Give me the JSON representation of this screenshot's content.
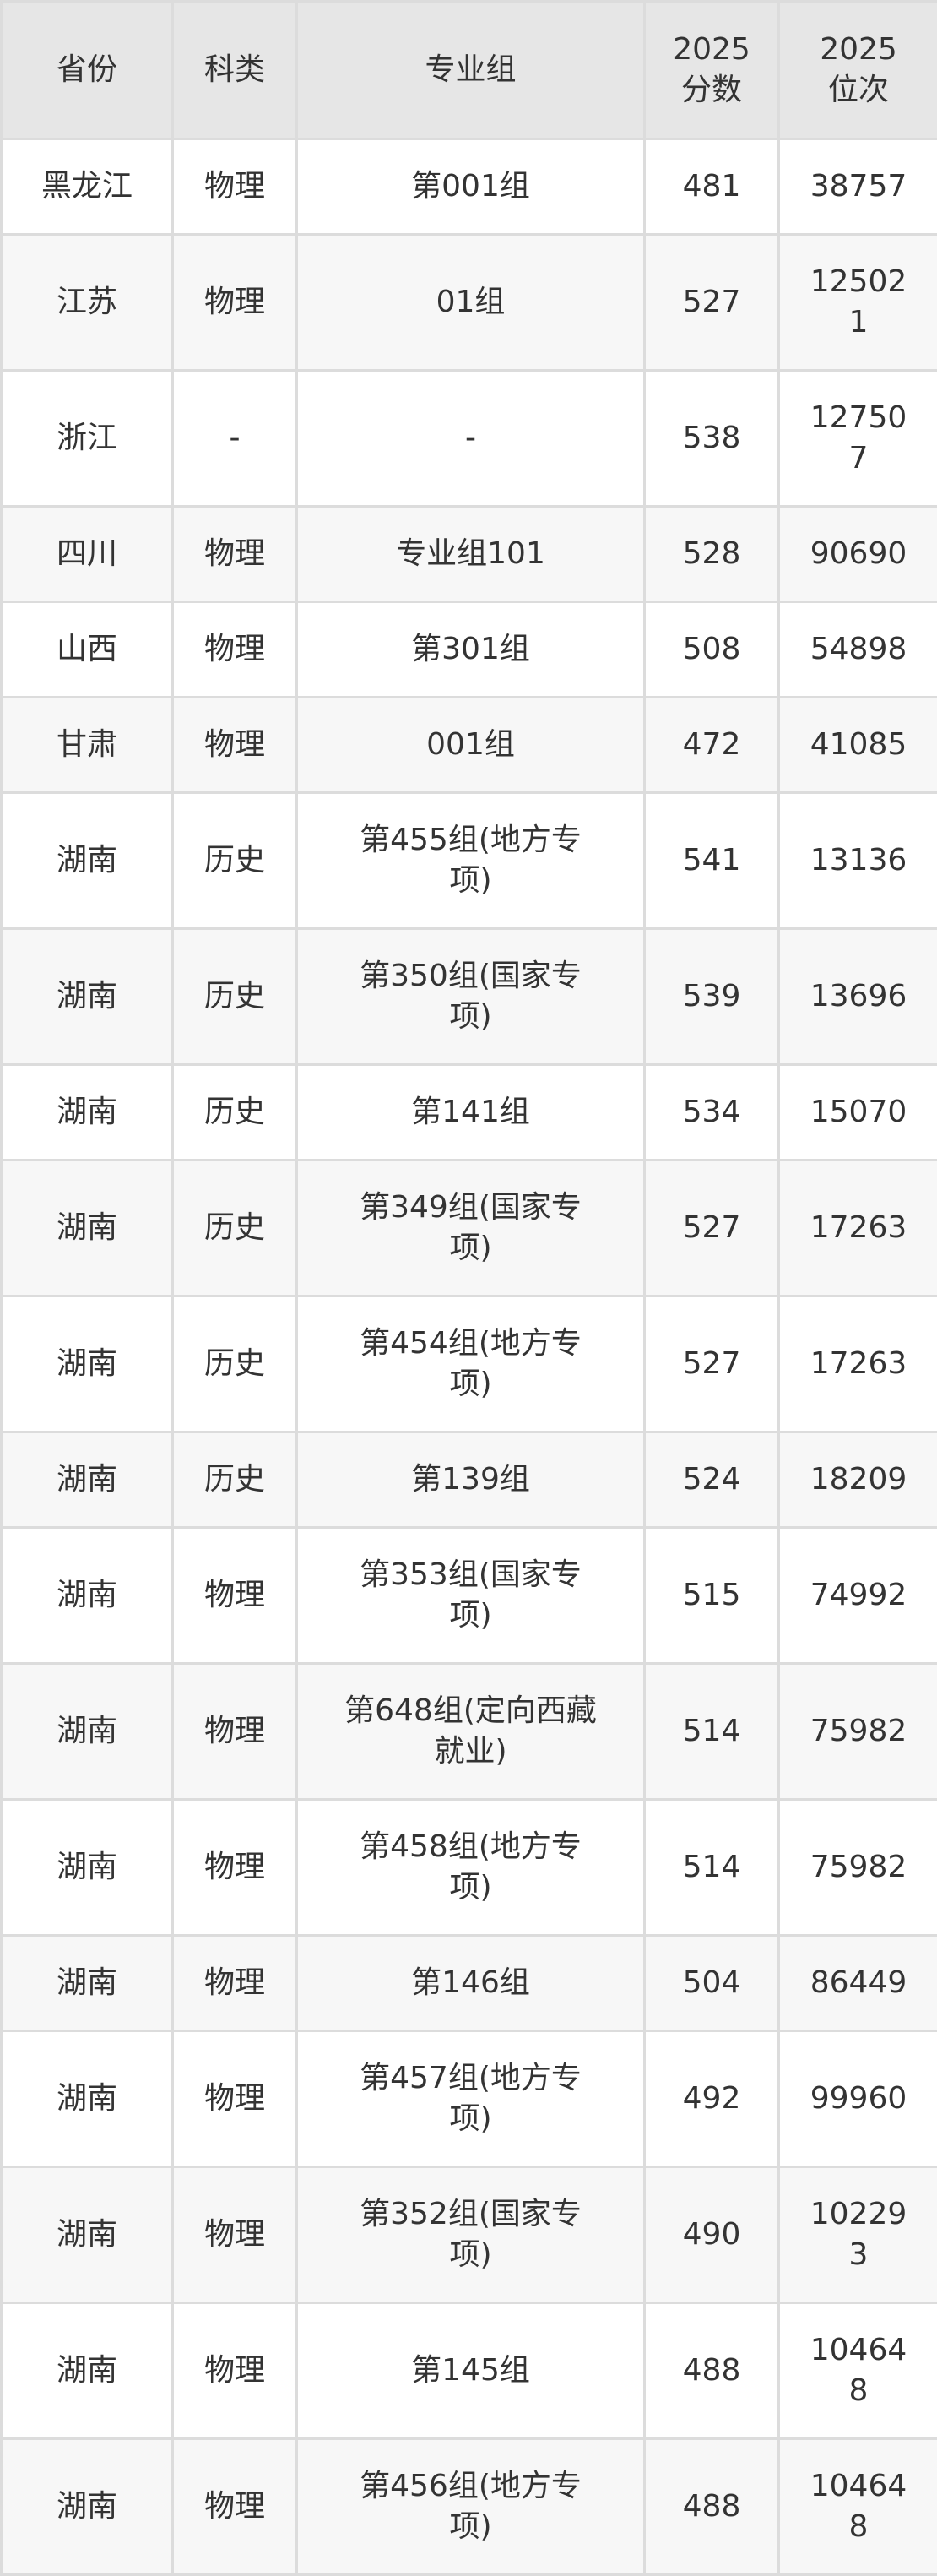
{
  "headers": [
    "省份",
    "科类",
    "专业组",
    "2025分数",
    "2025位次"
  ],
  "rows": [
    [
      "黑龙江",
      "物理",
      "第001组",
      "481",
      "38757"
    ],
    [
      "江苏",
      "物理",
      "01组",
      "527",
      "125021"
    ],
    [
      "浙江",
      "-",
      "-",
      "538",
      "127507"
    ],
    [
      "四川",
      "物理",
      "专业组101",
      "528",
      "90690"
    ],
    [
      "山西",
      "物理",
      "第301组",
      "508",
      "54898"
    ],
    [
      "甘肃",
      "物理",
      "001组",
      "472",
      "41085"
    ],
    [
      "湖南",
      "历史",
      "第455组(地方专项)",
      "541",
      "13136"
    ],
    [
      "湖南",
      "历史",
      "第350组(国家专项)",
      "539",
      "13696"
    ],
    [
      "湖南",
      "历史",
      "第141组",
      "534",
      "15070"
    ],
    [
      "湖南",
      "历史",
      "第349组(国家专项)",
      "527",
      "17263"
    ],
    [
      "湖南",
      "历史",
      "第454组(地方专项)",
      "527",
      "17263"
    ],
    [
      "湖南",
      "历史",
      "第139组",
      "524",
      "18209"
    ],
    [
      "湖南",
      "物理",
      "第353组(国家专项)",
      "515",
      "74992"
    ],
    [
      "湖南",
      "物理",
      "第648组(定向西藏就业)",
      "514",
      "75982"
    ],
    [
      "湖南",
      "物理",
      "第458组(地方专项)",
      "514",
      "75982"
    ],
    [
      "湖南",
      "物理",
      "第146组",
      "504",
      "86449"
    ],
    [
      "湖南",
      "物理",
      "第457组(地方专项)",
      "492",
      "99960"
    ],
    [
      "湖南",
      "物理",
      "第352组(国家专项)",
      "490",
      "102293"
    ],
    [
      "湖南",
      "物理",
      "第145组",
      "488",
      "104648"
    ],
    [
      "湖南",
      "物理",
      "第456组(地方专项)",
      "488",
      "104648"
    ]
  ]
}
